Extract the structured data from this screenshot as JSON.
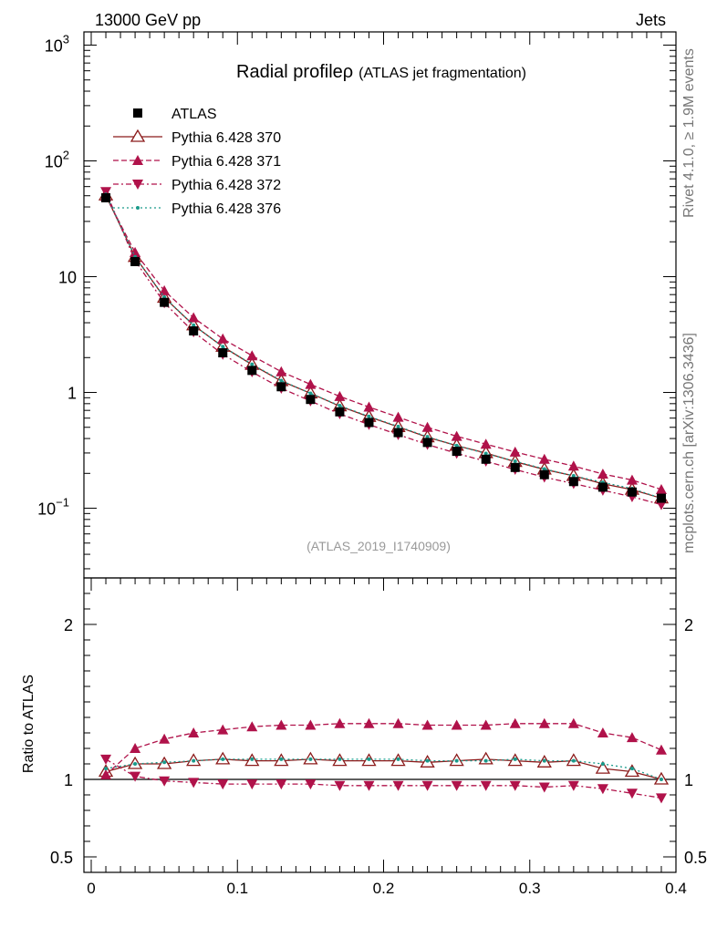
{
  "header": {
    "energy_label": "13000 GeV pp",
    "category_label": "Jets"
  },
  "side_labels": {
    "rivet_text": "Rivet 4.1.0, ≥ 1.9M events",
    "mcplots_text": "mcplots.cern.ch [arXiv:1306.3436]"
  },
  "chart_data": {
    "type": "line",
    "title": "Radial profile",
    "title_symbol": "ρ",
    "subtitle": "(ATLAS jet fragmentation)",
    "analysis_id": "(ATLAS_2019_I1740909)",
    "xlabel": "",
    "ylabel": "",
    "ratio_ylabel": "Ratio to ATLAS",
    "xlim": [
      -0.005,
      0.4
    ],
    "ylim": [
      0.025,
      1300
    ],
    "yscale": "log",
    "ratio_ylim": [
      0.4,
      2.3
    ],
    "x_ticks": [
      "0",
      "0.1",
      "0.2",
      "0.3",
      "0.4"
    ],
    "y_ticks_main": [
      {
        "value": 1000,
        "base": "10",
        "exp": "3"
      },
      {
        "value": 100,
        "base": "10",
        "exp": "2"
      },
      {
        "value": 10,
        "base": "10",
        "exp": ""
      },
      {
        "value": 1,
        "base": "1",
        "exp": ""
      },
      {
        "value": 0.1,
        "base": "10",
        "exp": "−1"
      }
    ],
    "y_ticks_ratio": [
      "0.5",
      "1",
      "2"
    ],
    "x": [
      0.01,
      0.03,
      0.05,
      0.07,
      0.09,
      0.11,
      0.13,
      0.15,
      0.17,
      0.19,
      0.21,
      0.23,
      0.25,
      0.27,
      0.29,
      0.31,
      0.33,
      0.35,
      0.37,
      0.39
    ],
    "reference": {
      "name": "ATLAS",
      "values": [
        48,
        13.5,
        6.0,
        3.4,
        2.2,
        1.55,
        1.12,
        0.87,
        0.68,
        0.55,
        0.45,
        0.37,
        0.31,
        0.265,
        0.225,
        0.195,
        0.17,
        0.152,
        0.138,
        0.122
      ]
    },
    "series": [
      {
        "name": "Pythia 6.428 370",
        "color": "#8b1a1a",
        "marker": "triangle-open",
        "dash": "",
        "ratio": [
          1.05,
          1.1,
          1.1,
          1.12,
          1.13,
          1.12,
          1.12,
          1.13,
          1.12,
          1.12,
          1.12,
          1.11,
          1.12,
          1.13,
          1.12,
          1.11,
          1.12,
          1.07,
          1.05,
          1.0
        ]
      },
      {
        "name": "Pythia 6.428 371",
        "color": "#b0124a",
        "marker": "triangle-up",
        "dash": "6,3",
        "ratio": [
          1.03,
          1.2,
          1.26,
          1.3,
          1.32,
          1.34,
          1.35,
          1.35,
          1.36,
          1.36,
          1.36,
          1.35,
          1.35,
          1.35,
          1.36,
          1.36,
          1.36,
          1.3,
          1.27,
          1.19
        ]
      },
      {
        "name": "Pythia 6.428 372",
        "color": "#b0124a",
        "marker": "triangle-down",
        "dash": "6,3,2,3",
        "ratio": [
          1.13,
          1.02,
          0.99,
          0.98,
          0.97,
          0.97,
          0.97,
          0.97,
          0.96,
          0.96,
          0.96,
          0.96,
          0.96,
          0.96,
          0.96,
          0.95,
          0.96,
          0.94,
          0.91,
          0.88
        ]
      },
      {
        "name": "Pythia 6.428 376",
        "color": "#1a9a8a",
        "marker": "dot",
        "dash": "2,3",
        "ratio": [
          1.07,
          1.1,
          1.11,
          1.12,
          1.13,
          1.13,
          1.13,
          1.13,
          1.13,
          1.13,
          1.13,
          1.12,
          1.12,
          1.12,
          1.13,
          1.12,
          1.12,
          1.1,
          1.07,
          1.0
        ]
      }
    ]
  }
}
